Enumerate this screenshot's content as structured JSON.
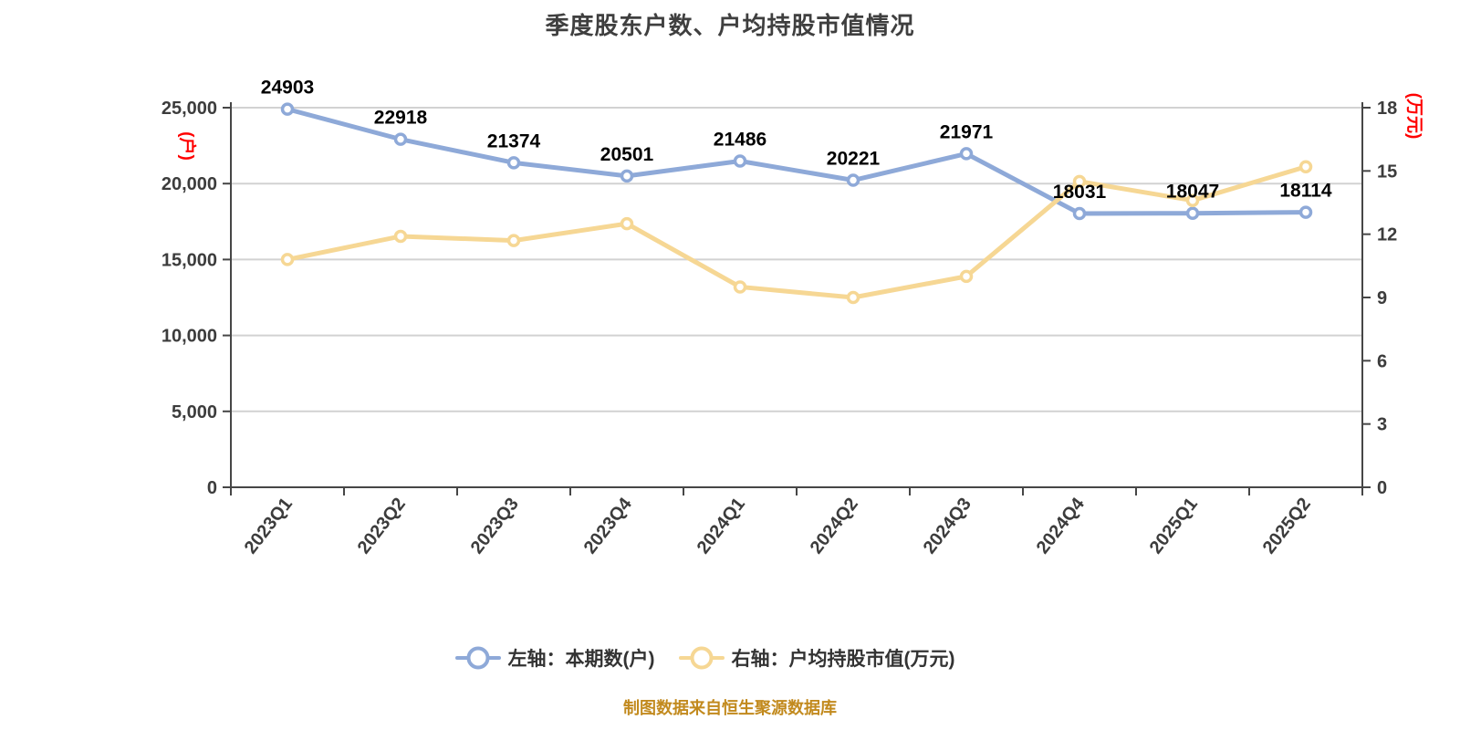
{
  "title": "季度股东户数、户均持股市值情况",
  "footer": "制图数据来自恒生聚源数据库",
  "colors": {
    "series_left": "#8EA9D8",
    "series_right": "#F6D794",
    "marker_fill": "#FFFFFF",
    "grid_line": "#D2D2D2",
    "axis_line": "#464646",
    "tick_label": "#3C3C3C",
    "data_label": "#000000",
    "axis_unit": "#FF0000",
    "title_text": "#3F3F3F",
    "footer_text": "#C28A1E"
  },
  "legend": {
    "items": [
      {
        "label": "左轴：本期数(户)",
        "color": "#8EA9D8"
      },
      {
        "label": "右轴：户均持股市值(万元)",
        "color": "#F6D794"
      }
    ]
  },
  "chart_data": {
    "type": "line",
    "title": "季度股东户数、户均持股市值情况",
    "categories": [
      "2023Q1",
      "2023Q2",
      "2023Q3",
      "2023Q4",
      "2024Q1",
      "2024Q2",
      "2024Q3",
      "2024Q4",
      "2025Q1",
      "2025Q2"
    ],
    "series": [
      {
        "name": "左轴：本期数(户)",
        "yaxis": "left",
        "color": "#8EA9D8",
        "values": [
          24903,
          22918,
          21374,
          20501,
          21486,
          20221,
          21971,
          18031,
          18047,
          18114
        ],
        "labels": [
          "24903",
          "22918",
          "21374",
          "20501",
          "21486",
          "20221",
          "21971",
          "18031",
          "18047",
          "18114"
        ],
        "show_labels": true
      },
      {
        "name": "右轴：户均持股市值(万元)",
        "yaxis": "right",
        "color": "#F6D794",
        "values": [
          10.8,
          11.9,
          11.7,
          12.5,
          9.5,
          9.0,
          10.0,
          14.5,
          13.6,
          15.2
        ],
        "show_labels": false
      }
    ],
    "left_axis": {
      "unit_label": "(户)",
      "min": 0,
      "max": 25000,
      "interval": 5000,
      "tick_labels": [
        "0",
        "5,000",
        "10,000",
        "15,000",
        "20,000",
        "25,000"
      ]
    },
    "right_axis": {
      "unit_label": "(万元)",
      "min": 0,
      "max": 18,
      "interval": 3,
      "tick_labels": [
        "0",
        "3",
        "6",
        "9",
        "12",
        "15",
        "18"
      ]
    },
    "grid": "horizontal",
    "legend_position": "bottom",
    "source_note": "制图数据来自恒生聚源数据库"
  }
}
